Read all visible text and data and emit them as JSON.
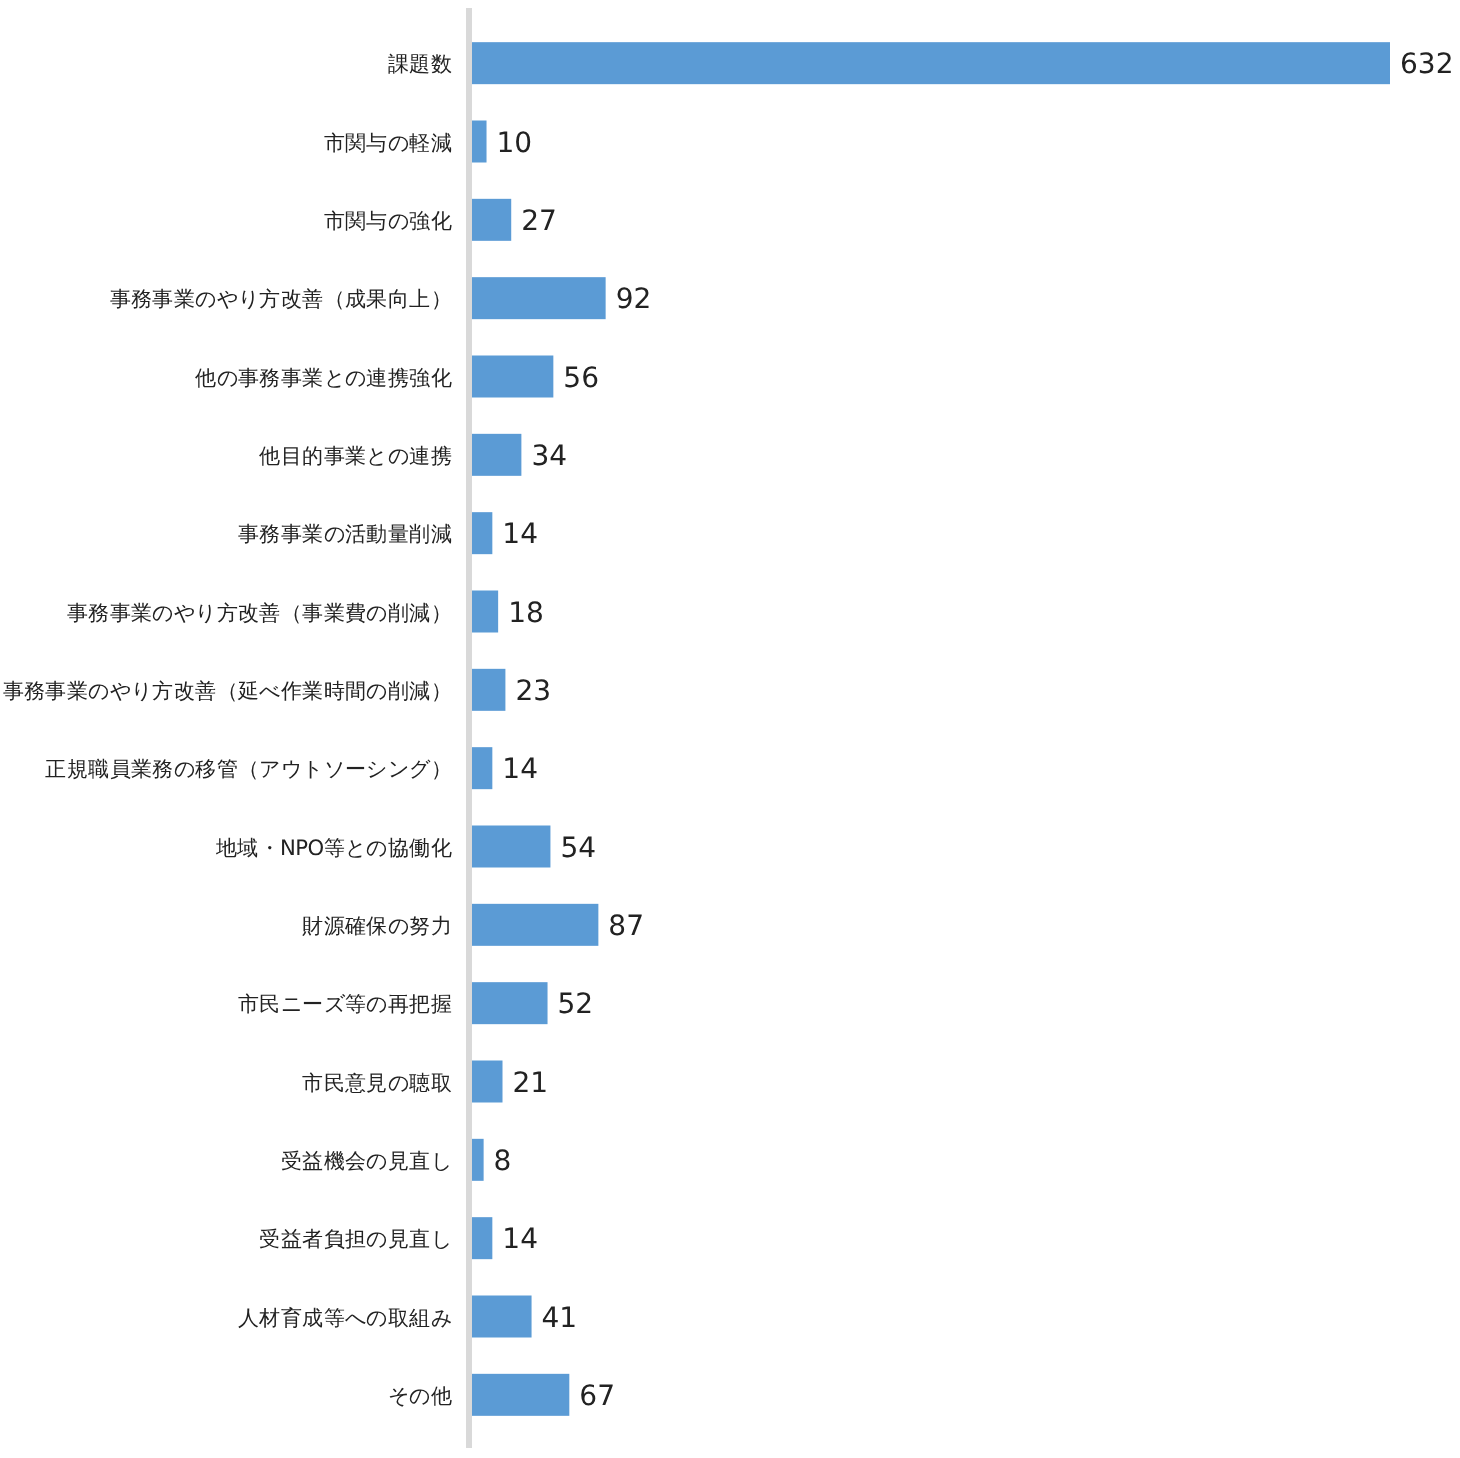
{
  "chart_data": {
    "type": "bar",
    "orientation": "horizontal",
    "categories": [
      "課題数",
      "市関与の軽減",
      "市関与の強化",
      "事務事業のやり方改善（成果向上）",
      "他の事務事業との連携強化",
      "他目的事業との連携",
      "事務事業の活動量削減",
      "事務事業のやり方改善（事業費の削減）",
      "事務事業のやり方改善（延べ作業時間の削減）",
      "正規職員業務の移管（アウトソーシング）",
      "地域・NPO等との協働化",
      "財源確保の努力",
      "市民ニーズ等の再把握",
      "市民意見の聴取",
      "受益機会の見直し",
      "受益者負担の見直し",
      "人材育成等への取組み",
      "その他"
    ],
    "values": [
      632,
      10,
      27,
      92,
      56,
      34,
      14,
      18,
      23,
      14,
      54,
      87,
      52,
      21,
      8,
      14,
      41,
      67
    ],
    "color": "#5b9bd5",
    "data_labels": true
  }
}
